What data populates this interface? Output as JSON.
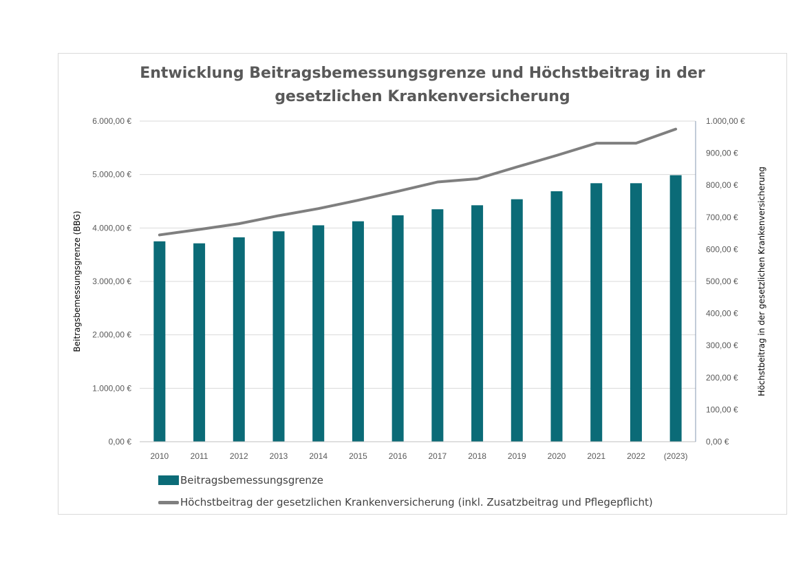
{
  "chart_data": {
    "type": "bar",
    "title_lines": [
      "Entwicklung Beitragsbemessungsgrenze und Höchstbeitrag in der",
      "gesetzlichen Krankenversicherung"
    ],
    "categories": [
      "2010",
      "2011",
      "2012",
      "2013",
      "2014",
      "2015",
      "2016",
      "2017",
      "2018",
      "2019",
      "2020",
      "2021",
      "2022",
      "(2023)"
    ],
    "ylabel_left": "Beitragsbemessungsgrenze (BBG)",
    "ylabel_right": "Höchstbeitrag in der gesetzlichen Krankenversicherung",
    "y_left": {
      "min": 0,
      "max": 6000,
      "step": 1000,
      "tick_labels": [
        "0,00 €",
        "1.000,00 €",
        "2.000,00 €",
        "3.000,00 €",
        "4.000,00 €",
        "5.000,00 €",
        "6.000,00 €"
      ]
    },
    "y_right": {
      "min": 0,
      "max": 1000,
      "step": 100,
      "tick_labels": [
        "0,00 €",
        "100,00 €",
        "200,00 €",
        "300,00 €",
        "400,00 €",
        "500,00 €",
        "600,00 €",
        "700,00 €",
        "800,00 €",
        "900,00 €",
        "1.000,00 €"
      ]
    },
    "grid": true,
    "legend_position": "bottom-left",
    "series": [
      {
        "name": "Beitragsbemessungsgrenze",
        "kind": "bar",
        "axis": "left",
        "color": "#0b6b77",
        "values": [
          3750,
          3712.5,
          3825,
          3937.5,
          4050,
          4125,
          4237.5,
          4350,
          4425,
          4537.5,
          4687.5,
          4837.5,
          4837.5,
          4987.5
        ]
      },
      {
        "name": "Höchstbeitrag der gesetzlichen Krankenversicherung (inkl. Zusatzbeitrag und Pflegepflicht)",
        "kind": "line",
        "axis": "right",
        "color": "#7f7f7f",
        "values": [
          645,
          662,
          680,
          705,
          727,
          753,
          781,
          810,
          820,
          857,
          893,
          931,
          931,
          975
        ]
      }
    ]
  }
}
